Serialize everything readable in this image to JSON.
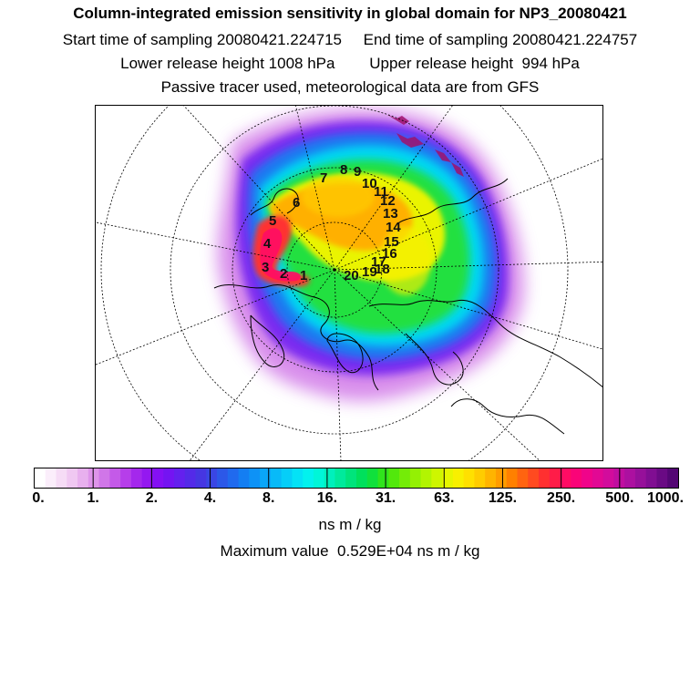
{
  "header": {
    "title": "Column-integrated emission sensitivity in global domain for NP3_20080421",
    "start_label": "Start time of sampling 20080421.224715",
    "end_label": "End time of sampling 20080421.224757",
    "lower_label": "Lower release height 1008 hPa",
    "upper_label": "Upper release height  994 hPa",
    "tracer_label": "Passive tracer used, meteorological data are from GFS"
  },
  "map": {
    "projection": "north polar stereographic",
    "trajectory_labels": [
      "1",
      "2",
      "3",
      "4",
      "5",
      "6",
      "7",
      "8",
      "9",
      "10",
      "11",
      "12",
      "13",
      "14",
      "15",
      "16",
      "17",
      "18",
      "19",
      "20"
    ]
  },
  "colorbar": {
    "tick_labels": [
      "0.",
      "1.",
      "2.",
      "4.",
      "8.",
      "16.",
      "31.",
      "63.",
      "125.",
      "250.",
      "500.",
      "1000."
    ],
    "colors": [
      "#ffffff",
      "#fbeefb",
      "#f6dcf6",
      "#f0c8f2",
      "#e8b0ee",
      "#de94ea",
      "#d076e8",
      "#c45ae8",
      "#b63eea",
      "#a428ec",
      "#9418f0",
      "#8410f4",
      "#7414f2",
      "#6420ee",
      "#542ae8",
      "#4636e2",
      "#3a46e4",
      "#2c58e8",
      "#206aee",
      "#147ef2",
      "#0e92f6",
      "#0aa6f8",
      "#08baf8",
      "#06cef8",
      "#04e2f6",
      "#02f2ee",
      "#00f6d8",
      "#00f0bc",
      "#00ea9c",
      "#00e47c",
      "#00e05c",
      "#10e03c",
      "#30e41c",
      "#52e80c",
      "#74ec08",
      "#94f004",
      "#b2f402",
      "#cef600",
      "#e6f600",
      "#f8f000",
      "#ffe000",
      "#ffcc00",
      "#ffb400",
      "#ff9c00",
      "#ff8000",
      "#ff6410",
      "#ff4a20",
      "#ff3030",
      "#ff1c48",
      "#ff0c64",
      "#fa0478",
      "#f0048a",
      "#e20894",
      "#d20c9c",
      "#c00ea0",
      "#ac10a0",
      "#96109a",
      "#800e92",
      "#6a0a84",
      "#540674"
    ],
    "units": "ns m / kg",
    "max_label": "Maximum value  0.529E+04 ns m / kg"
  }
}
